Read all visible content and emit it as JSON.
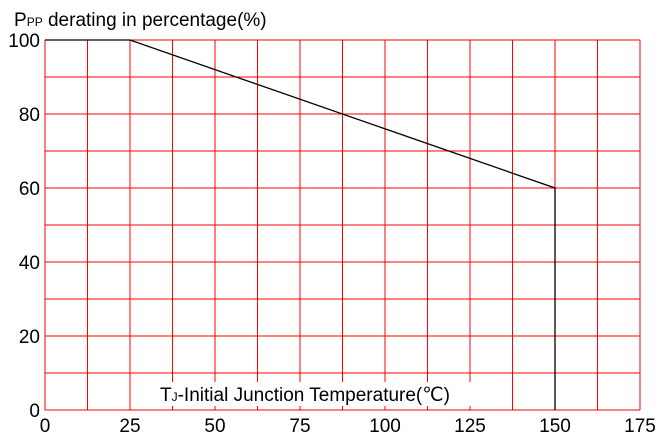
{
  "chart_data": {
    "type": "line",
    "title": "",
    "ylabel": {
      "main": "P",
      "sub": "PP",
      "rest": " derating in percentage(%)"
    },
    "xlabel": {
      "main": "T",
      "sub": "J",
      "rest": "-Initial Junction Temperature(℃)"
    },
    "xlim": [
      0,
      175
    ],
    "ylim": [
      0,
      100
    ],
    "x_ticks": [
      0,
      25,
      50,
      75,
      100,
      125,
      150,
      175
    ],
    "y_ticks": [
      0,
      20,
      40,
      60,
      80,
      100
    ],
    "x_tick_labels": [
      "0",
      "25",
      "50",
      "75",
      "100",
      "125",
      "150",
      "175"
    ],
    "y_tick_labels": [
      "0",
      "20",
      "40",
      "60",
      "80",
      "100"
    ],
    "grid": true,
    "grid_color": "#ff0000",
    "line_color": "#000000",
    "series": [
      {
        "x": [
          0,
          25,
          150,
          150
        ],
        "y": [
          100,
          100,
          60,
          0
        ]
      }
    ]
  }
}
